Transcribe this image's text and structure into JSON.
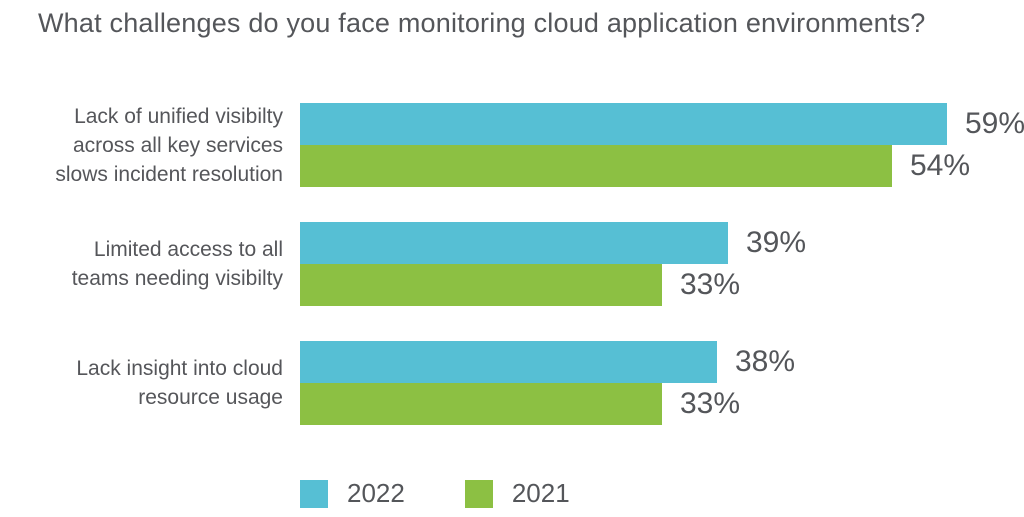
{
  "colors": {
    "series_2022": "#56BFD4",
    "series_2021": "#8CC043",
    "text": "#55565A"
  },
  "chart_data": {
    "type": "bar",
    "orientation": "horizontal",
    "title": "What challenges do you face monitoring cloud application environments?",
    "categories": [
      "Lack of unified visibilty across all key services slows incident resolution",
      "Limited access to all teams needing visibilty",
      "Lack insight into cloud resource usage"
    ],
    "category_lines": [
      [
        "Lack of unified visibilty",
        "across all key services",
        "slows incident resolution"
      ],
      [
        "Limited access to all",
        "teams needing visibilty"
      ],
      [
        "Lack insight into cloud",
        "resource usage"
      ]
    ],
    "series": [
      {
        "name": "2022",
        "color": "#56BFD4",
        "values": [
          59,
          39,
          38
        ]
      },
      {
        "name": "2021",
        "color": "#8CC043",
        "values": [
          54,
          33,
          33
        ]
      }
    ],
    "value_suffix": "%",
    "xlabel": "",
    "ylabel": "",
    "xlim": [
      0,
      66
    ],
    "grid": false,
    "legend_position": "bottom",
    "value_labels_shown": true
  },
  "legend": {
    "items": [
      {
        "label": "2022",
        "color": "#56BFD4"
      },
      {
        "label": "2021",
        "color": "#8CC043"
      }
    ]
  }
}
